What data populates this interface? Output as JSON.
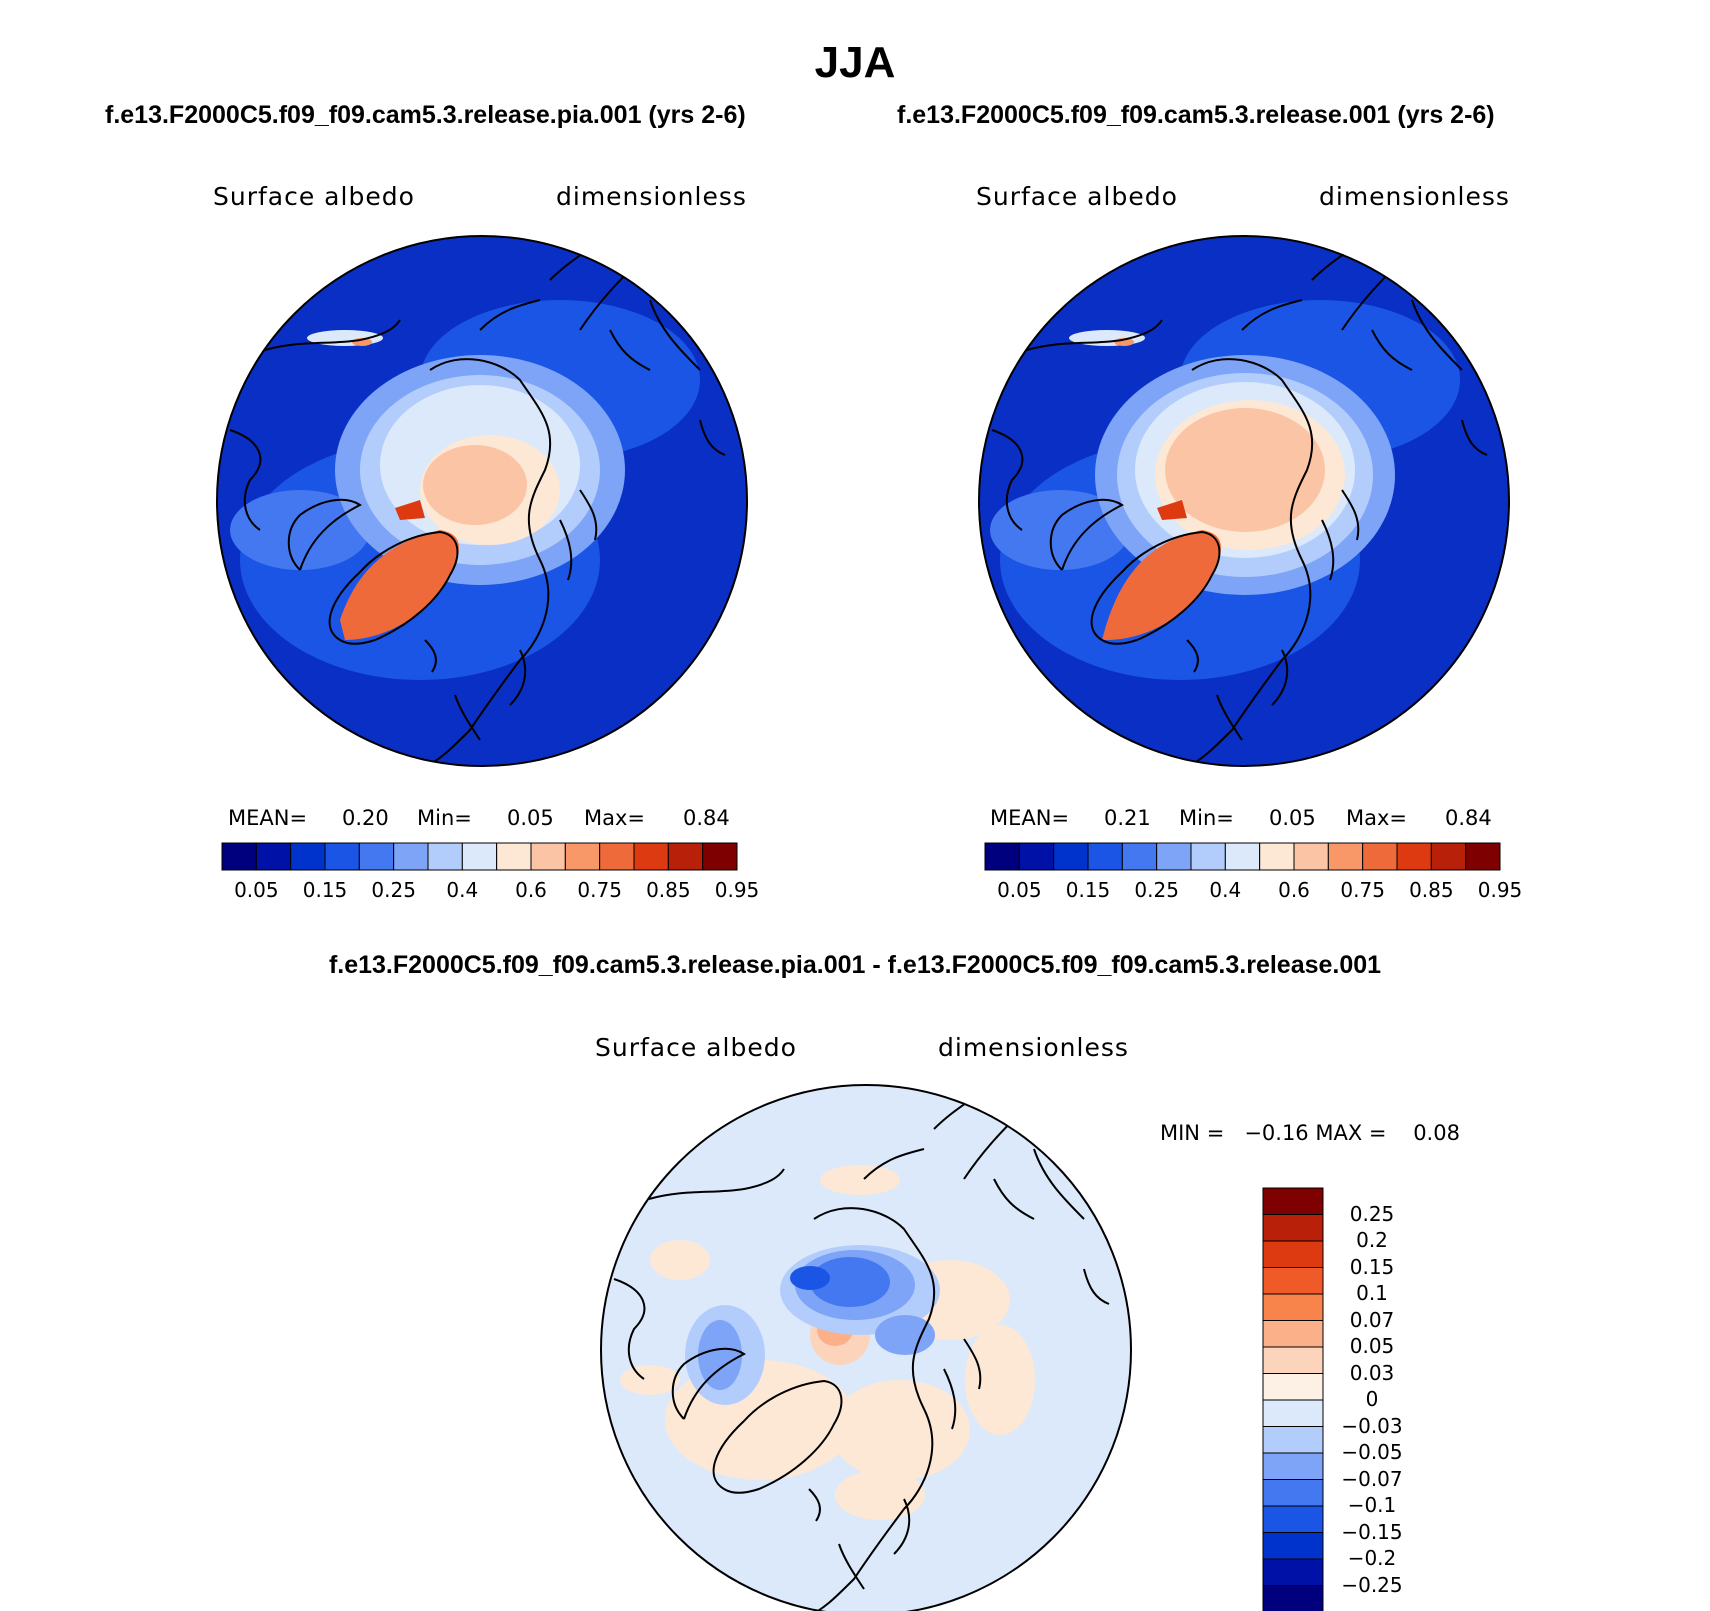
{
  "title": "JJA",
  "panels": [
    {
      "case_title": "f.e13.F2000C5.f09_f09.cam5.3.release.pia.001 (yrs 2-6)",
      "variable": "Surface albedo",
      "units": "dimensionless",
      "stats": {
        "mean_label": "MEAN=",
        "mean": "0.20",
        "min_label": "Min=",
        "min": "0.05",
        "max_label": "Max=",
        "max": "0.84"
      }
    },
    {
      "case_title": "f.e13.F2000C5.f09_f09.cam5.3.release.001 (yrs 2-6)",
      "variable": "Surface albedo",
      "units": "dimensionless",
      "stats": {
        "mean_label": "MEAN=",
        "mean": "0.21",
        "min_label": "Min=",
        "min": "0.05",
        "max_label": "Max=",
        "max": "0.84"
      }
    }
  ],
  "colorbar": {
    "colors": [
      "#00007f",
      "#0011a8",
      "#0033cc",
      "#1a55e6",
      "#4478f0",
      "#7ea4f7",
      "#b2cdfb",
      "#dbe9fb",
      "#fde8d6",
      "#fbc4a4",
      "#f89868",
      "#ef6a3a",
      "#de3a12",
      "#b8200a",
      "#7f0000"
    ],
    "labels": [
      "0.05",
      "0.15",
      "0.25",
      "0.4",
      "0.6",
      "0.75",
      "0.85",
      "0.95"
    ]
  },
  "difference": {
    "title": "f.e13.F2000C5.f09_f09.cam5.3.release.pia.001 - f.e13.F2000C5.f09_f09.cam5.3.release.001",
    "variable": "Surface albedo",
    "units": "dimensionless",
    "stats": "MIN =   −0.16 MAX =    0.08",
    "colorbar": {
      "colors": [
        "#7f0000",
        "#b8200a",
        "#de3a12",
        "#ef5a28",
        "#f8844c",
        "#fbb08a",
        "#fcd4bc",
        "#fdf0e4",
        "#dbe9fb",
        "#b2cdfb",
        "#7ea4f7",
        "#4478f0",
        "#1a55e6",
        "#0033cc",
        "#0011a8",
        "#00007f"
      ],
      "labels": [
        "0.25",
        "0.2",
        "0.15",
        "0.1",
        "0.07",
        "0.05",
        "0.03",
        "0",
        "−0.03",
        "−0.05",
        "−0.07",
        "−0.1",
        "−0.15",
        "−0.2",
        "−0.25"
      ]
    }
  }
}
